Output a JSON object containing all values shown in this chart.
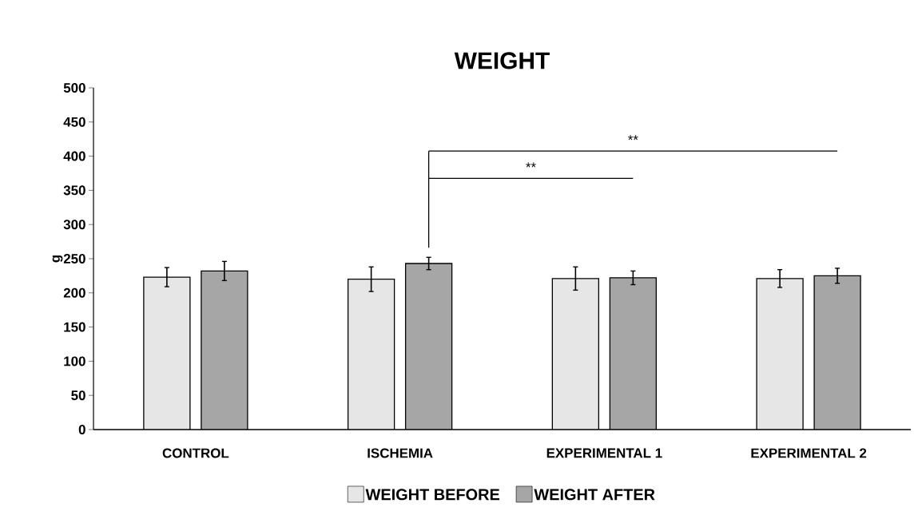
{
  "chart_data": {
    "type": "bar",
    "title": "WEIGHT",
    "ylabel": "g",
    "categories": [
      "CONTROL",
      "ISCHEMIA",
      "EXPERIMENTAL 1",
      "EXPERIMENTAL 2"
    ],
    "series": [
      {
        "name": "WEIGHT BEFORE",
        "color": "#e6e6e6",
        "values": [
          223,
          220,
          221,
          221
        ],
        "errors": [
          14,
          18,
          17,
          13
        ]
      },
      {
        "name": "WEIGHT AFTER",
        "color": "#a6a6a6",
        "values": [
          232,
          243,
          222,
          225
        ],
        "errors": [
          14,
          9,
          10,
          11
        ]
      }
    ],
    "ylim": [
      0,
      500
    ],
    "yticks": [
      0,
      50,
      100,
      150,
      200,
      250,
      300,
      350,
      400,
      450,
      500
    ],
    "annotations": [
      "**",
      "**"
    ],
    "grid": false,
    "legend": "bottom"
  }
}
